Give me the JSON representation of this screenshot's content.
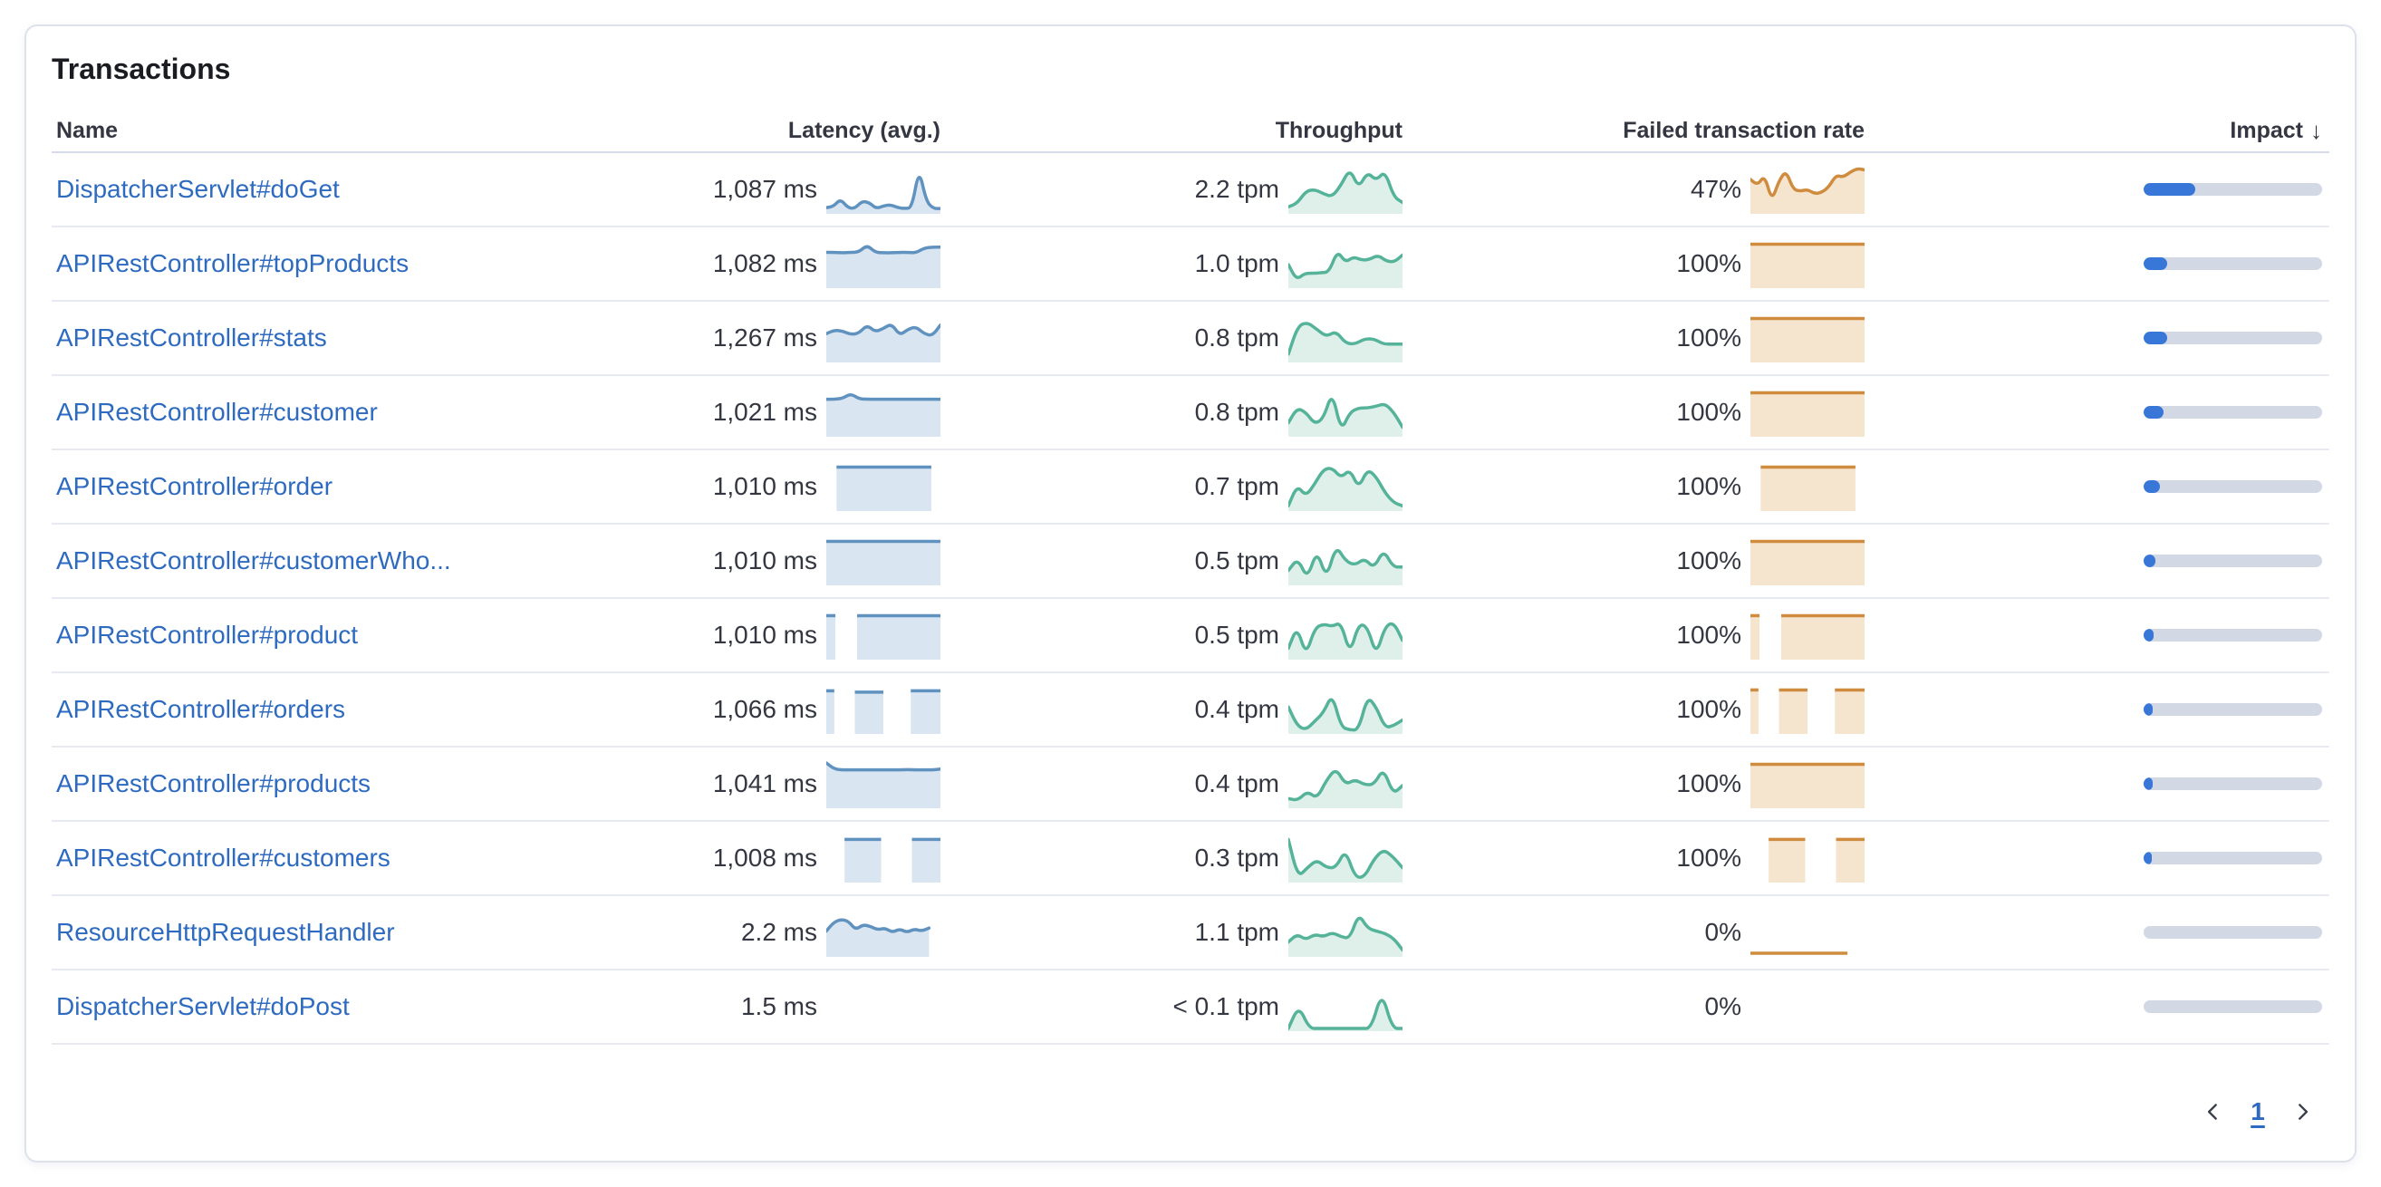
{
  "card": {
    "title": "Transactions"
  },
  "table": {
    "columns": {
      "name": "Name",
      "latency": "Latency (avg.)",
      "throughput": "Throughput",
      "failed": "Failed transaction rate",
      "impact": "Impact"
    },
    "sort_icon": "↓"
  },
  "pagination": {
    "page": "1"
  },
  "colors": {
    "latency_line": "#6092C0",
    "latency_fill": "#DAE5F2",
    "throughput_line": "#54B399",
    "throughput_fill": "#DFF0EA",
    "failed_line": "#CF8B3E",
    "failed_fill": "#F5E4CE",
    "impact_fill": "#3877D8",
    "impact_track": "#D2D9E4",
    "link": "#2E6BC0"
  },
  "chart_data": {
    "type": "table",
    "note": "sparkline y-values normalized 0-1; impact normalized 0-1"
  },
  "rows": [
    {
      "name": "DispatcherServlet#doGet",
      "latency": "1,087 ms",
      "throughput": "2.2 tpm",
      "failed": "47%",
      "impact": 0.29,
      "latency_spark": {
        "type": "line",
        "points": [
          0.1,
          0.13,
          0.3,
          0.1,
          0.08,
          0.25,
          0.22,
          0.08,
          0.14,
          0.17,
          0.1,
          0.08,
          0.1,
          1.0,
          0.25,
          0.08,
          0.08
        ]
      },
      "throughput_spark": {
        "type": "line",
        "points": [
          0.12,
          0.2,
          0.48,
          0.52,
          0.42,
          0.35,
          0.62,
          1.0,
          0.55,
          0.92,
          0.72,
          0.95,
          0.35,
          0.22
        ]
      },
      "failed_spark": {
        "type": "line",
        "points": [
          0.75,
          0.62,
          0.85,
          0.25,
          0.72,
          0.95,
          0.52,
          0.48,
          0.52,
          0.42,
          0.45,
          0.58,
          0.85,
          0.8,
          0.92,
          1.0,
          0.97
        ]
      }
    },
    {
      "name": "APIRestController#topProducts",
      "latency": "1,082 ms",
      "throughput": "1.0 tpm",
      "failed": "100%",
      "impact": 0.13,
      "latency_spark": {
        "type": "line",
        "points": [
          0.78,
          0.78,
          0.77,
          0.78,
          0.79,
          0.95,
          0.78,
          0.77,
          0.77,
          0.78,
          0.78,
          0.77,
          0.88,
          0.9,
          0.9
        ]
      },
      "throughput_spark": {
        "type": "line",
        "points": [
          0.5,
          0.15,
          0.3,
          0.3,
          0.31,
          0.33,
          0.82,
          0.55,
          0.68,
          0.6,
          0.62,
          0.72,
          0.58,
          0.56,
          0.72
        ]
      },
      "failed_spark": {
        "type": "blocks",
        "segments": [
          [
            0,
            1,
            0.97
          ]
        ]
      }
    },
    {
      "name": "APIRestController#stats",
      "latency": "1,267 ms",
      "throughput": "0.8 tpm",
      "failed": "100%",
      "impact": 0.13,
      "latency_spark": {
        "type": "line",
        "points": [
          0.62,
          0.7,
          0.68,
          0.6,
          0.63,
          0.82,
          0.66,
          0.74,
          0.85,
          0.58,
          0.72,
          0.78,
          0.62,
          0.57,
          0.82
        ]
      },
      "throughput_spark": {
        "type": "line",
        "points": [
          0.15,
          0.8,
          0.88,
          0.72,
          0.55,
          0.68,
          0.4,
          0.38,
          0.5,
          0.5,
          0.38,
          0.38,
          0.38
        ]
      },
      "failed_spark": {
        "type": "blocks",
        "segments": [
          [
            0,
            1,
            0.97
          ]
        ]
      }
    },
    {
      "name": "APIRestController#customer",
      "latency": "1,021 ms",
      "throughput": "0.8 tpm",
      "failed": "100%",
      "impact": 0.11,
      "latency_spark": {
        "type": "line",
        "points": [
          0.82,
          0.82,
          0.84,
          0.95,
          0.83,
          0.82,
          0.82,
          0.82,
          0.82,
          0.82,
          0.82,
          0.82,
          0.82,
          0.82,
          0.82
        ]
      },
      "throughput_spark": {
        "type": "line",
        "points": [
          0.28,
          0.62,
          0.52,
          0.25,
          0.38,
          1.0,
          0.08,
          0.52,
          0.62,
          0.62,
          0.66,
          0.72,
          0.52,
          0.18
        ]
      },
      "failed_spark": {
        "type": "blocks",
        "segments": [
          [
            0,
            1,
            0.97
          ]
        ]
      }
    },
    {
      "name": "APIRestController#order",
      "latency": "1,010 ms",
      "throughput": "0.7 tpm",
      "failed": "100%",
      "impact": 0.09,
      "latency_spark": {
        "type": "blocks",
        "segments": [
          [
            0.09,
            0.92,
            0.97
          ]
        ]
      },
      "throughput_spark": {
        "type": "line",
        "points": [
          0.08,
          0.55,
          0.3,
          0.58,
          0.92,
          0.95,
          0.72,
          0.92,
          0.48,
          0.92,
          0.75,
          0.38,
          0.15,
          0.08
        ]
      },
      "failed_spark": {
        "type": "blocks",
        "segments": [
          [
            0.09,
            0.92,
            0.97
          ]
        ]
      }
    },
    {
      "name": "APIRestController#customerWho...",
      "latency": "1,010 ms",
      "throughput": "0.5 tpm",
      "failed": "100%",
      "impact": 0.065,
      "latency_spark": {
        "type": "blocks",
        "segments": [
          [
            0,
            1,
            0.97
          ]
        ]
      },
      "throughput_spark": {
        "type": "line",
        "points": [
          0.3,
          0.58,
          0.1,
          0.78,
          0.1,
          0.88,
          0.52,
          0.42,
          0.58,
          0.35,
          0.78,
          0.38,
          0.38
        ]
      },
      "failed_spark": {
        "type": "blocks",
        "segments": [
          [
            0,
            1,
            0.97
          ]
        ]
      }
    },
    {
      "name": "APIRestController#product",
      "latency": "1,010 ms",
      "throughput": "0.5 tpm",
      "failed": "100%",
      "impact": 0.055,
      "latency_spark": {
        "type": "blocks",
        "segments": [
          [
            0,
            0.08,
            0.97
          ],
          [
            0.27,
            1,
            0.97
          ]
        ]
      },
      "throughput_spark": {
        "type": "line",
        "points": [
          0.22,
          0.72,
          0.05,
          0.68,
          0.78,
          0.72,
          0.82,
          0.08,
          0.78,
          0.72,
          0.05,
          0.72,
          0.82,
          0.4
        ]
      },
      "failed_spark": {
        "type": "blocks",
        "segments": [
          [
            0,
            0.08,
            0.97
          ],
          [
            0.27,
            1,
            0.97
          ]
        ]
      }
    },
    {
      "name": "APIRestController#orders",
      "latency": "1,066 ms",
      "throughput": "0.4 tpm",
      "failed": "100%",
      "impact": 0.05,
      "latency_spark": {
        "type": "blocks",
        "segments": [
          [
            0,
            0.07,
            0.95
          ],
          [
            0.25,
            0.5,
            0.92
          ],
          [
            0.74,
            1,
            0.95
          ]
        ]
      },
      "throughput_spark": {
        "type": "line",
        "points": [
          0.58,
          0.15,
          0.05,
          0.25,
          0.45,
          0.88,
          0.12,
          0.05,
          0.05,
          0.82,
          0.58,
          0.1,
          0.15,
          0.28
        ]
      },
      "failed_spark": {
        "type": "blocks",
        "segments": [
          [
            0,
            0.07,
            0.97
          ],
          [
            0.25,
            0.5,
            0.97
          ],
          [
            0.74,
            1,
            0.97
          ]
        ]
      }
    },
    {
      "name": "APIRestController#products",
      "latency": "1,041 ms",
      "throughput": "0.4 tpm",
      "failed": "100%",
      "impact": 0.05,
      "latency_spark": {
        "type": "line",
        "points": [
          1.0,
          0.86,
          0.84,
          0.84,
          0.84,
          0.84,
          0.84,
          0.84,
          0.84,
          0.84,
          0.85,
          0.84,
          0.84,
          0.84,
          0.86
        ]
      },
      "throughput_spark": {
        "type": "line",
        "points": [
          0.18,
          0.14,
          0.35,
          0.18,
          0.6,
          0.88,
          0.5,
          0.62,
          0.5,
          0.5,
          0.88,
          0.28,
          0.48
        ]
      },
      "failed_spark": {
        "type": "blocks",
        "segments": [
          [
            0,
            1,
            0.97
          ]
        ]
      }
    },
    {
      "name": "APIRestController#customers",
      "latency": "1,008 ms",
      "throughput": "0.3 tpm",
      "failed": "100%",
      "impact": 0.045,
      "latency_spark": {
        "type": "blocks",
        "segments": [
          [
            0.16,
            0.48,
            0.95
          ],
          [
            0.75,
            1,
            0.95
          ]
        ]
      },
      "throughput_spark": {
        "type": "line",
        "points": [
          0.95,
          0.08,
          0.3,
          0.48,
          0.3,
          0.3,
          0.72,
          0.08,
          0.08,
          0.5,
          0.72,
          0.55,
          0.3
        ]
      },
      "failed_spark": {
        "type": "blocks",
        "segments": [
          [
            0.16,
            0.48,
            0.95
          ],
          [
            0.75,
            1,
            0.95
          ]
        ]
      }
    },
    {
      "name": "ResourceHttpRequestHandler",
      "latency": "2.2 ms",
      "throughput": "1.1 tpm",
      "failed": "0%",
      "impact": 0,
      "latency_spark": {
        "type": "line",
        "x1": 0.9,
        "points": [
          0.55,
          0.75,
          0.82,
          0.78,
          0.58,
          0.7,
          0.66,
          0.58,
          0.62,
          0.52,
          0.6,
          0.52,
          0.6,
          0.55,
          0.62
        ]
      },
      "throughput_spark": {
        "type": "line",
        "points": [
          0.3,
          0.48,
          0.35,
          0.48,
          0.42,
          0.52,
          0.42,
          0.38,
          0.95,
          0.62,
          0.55,
          0.5,
          0.38,
          0.12
        ]
      },
      "failed_spark": {
        "type": "flatline",
        "x1": 0.85
      }
    },
    {
      "name": "DispatcherServlet#doPost",
      "latency": "1.5 ms",
      "throughput": "< 0.1 tpm",
      "failed": "0%",
      "impact": 0,
      "latency_spark": {
        "type": "none"
      },
      "throughput_spark": {
        "type": "line",
        "points": [
          0.02,
          0.55,
          0.02,
          0.02,
          0.02,
          0.02,
          0.02,
          0.02,
          0.02,
          0.88,
          0.02,
          0.02
        ]
      },
      "failed_spark": {
        "type": "none"
      }
    }
  ]
}
